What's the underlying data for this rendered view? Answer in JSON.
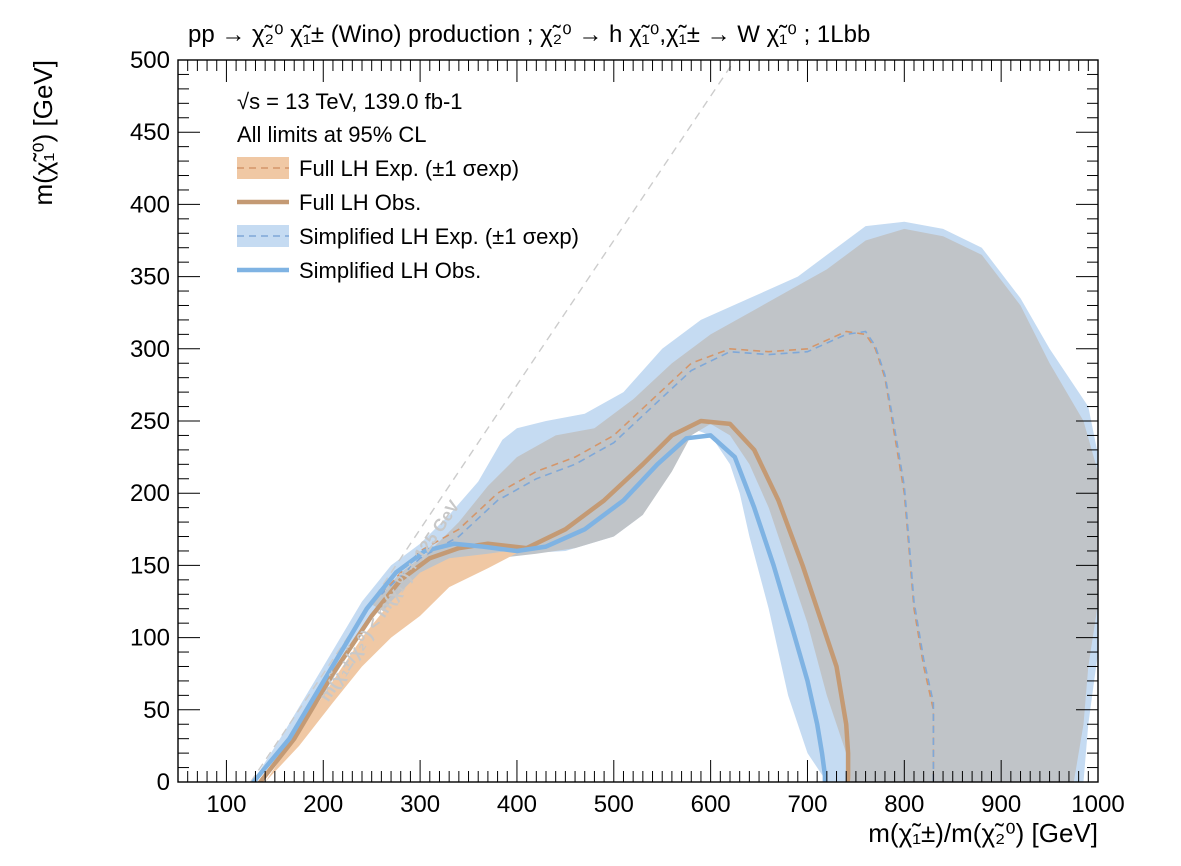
{
  "chart_data": {
    "type": "line",
    "title": "pp → χ̃₂⁰ χ̃₁± (Wino) production ; χ̃₂⁰ → h χ̃₁⁰,χ̃₁± → W χ̃₁⁰ ; 1Lbb",
    "xlabel": "m(χ̃₁±)/m(χ̃₂⁰) [GeV]",
    "ylabel": "m(χ̃₁⁰) [GeV]",
    "xlim": [
      50,
      1000
    ],
    "ylim": [
      0,
      500
    ],
    "xticks": [
      100,
      200,
      300,
      400,
      500,
      600,
      700,
      800,
      900,
      1000
    ],
    "yticks": [
      0,
      50,
      100,
      150,
      200,
      250,
      300,
      350,
      400,
      450,
      500
    ],
    "legend": {
      "position": "top-left",
      "header": [
        "√s = 13 TeV, 139.0 fb-1",
        "All limits at 95% CL"
      ],
      "entries": [
        {
          "label": "Full LH Exp. (±1 σexp)",
          "style": "dashed-band",
          "color": "#d4966a"
        },
        {
          "label": "Full LH Obs.",
          "style": "solid",
          "color": "#c49a74"
        },
        {
          "label": "Simplified LH Exp. (±1 σexp)",
          "style": "dashed-band",
          "color": "#7fa8d8"
        },
        {
          "label": "Simplified LH Obs.",
          "style": "solid",
          "color": "#7fb3e3"
        }
      ]
    },
    "annotation": "m(χ̃₁±/χ̃₂⁰) < m(χ̃₁⁰) + 125 GeV",
    "kinematic_line": {
      "x": [
        125,
        750
      ],
      "y": [
        0,
        625
      ]
    },
    "series": [
      {
        "name": "Simplified LH Exp. band",
        "kind": "band",
        "color": "#c5dbf2",
        "x": [
          127,
          160,
          200,
          240,
          270,
          300,
          330,
          360,
          385,
          400,
          430,
          470,
          510,
          550,
          590,
          640,
          690,
          730,
          760,
          800,
          840,
          880,
          920,
          950,
          990,
          1005,
          1010,
          1005,
          998,
          990,
          985,
          975,
          960,
          945,
          935,
          925,
          920,
          780,
          760,
          720,
          700,
          680,
          660,
          640,
          630,
          620,
          600,
          580,
          555,
          530,
          500,
          450,
          400,
          360,
          320,
          280,
          240,
          200,
          160,
          130
        ],
        "y": [
          0,
          35,
          80,
          125,
          150,
          165,
          185,
          208,
          237,
          245,
          250,
          255,
          270,
          300,
          320,
          335,
          350,
          370,
          385,
          388,
          383,
          370,
          335,
          300,
          260,
          210,
          150,
          110,
          80,
          40,
          0,
          0,
          0,
          0,
          0,
          0,
          0,
          0,
          0,
          0,
          20,
          60,
          120,
          170,
          200,
          220,
          240,
          245,
          215,
          185,
          170,
          160,
          158,
          160,
          155,
          140,
          105,
          60,
          25,
          0
        ]
      },
      {
        "name": "Full LH Exp. band",
        "kind": "band",
        "color": "#c0c4c8",
        "x": [
          250,
          280,
          310,
          340,
          370,
          400,
          440,
          480,
          520,
          560,
          600,
          640,
          680,
          720,
          760,
          800,
          840,
          880,
          920,
          950,
          985,
          1002,
          1005,
          998,
          990,
          985,
          975,
          960,
          945,
          935,
          925,
          905,
          880,
          860,
          850,
          840,
          820,
          800,
          780,
          760,
          745,
          745,
          745,
          740,
          720,
          700,
          680,
          660,
          640,
          620,
          600,
          580,
          560,
          530,
          500,
          460,
          420,
          380,
          340,
          300,
          270
        ],
        "y": [
          123,
          145,
          160,
          180,
          205,
          225,
          240,
          245,
          265,
          290,
          310,
          325,
          340,
          355,
          375,
          383,
          378,
          365,
          330,
          290,
          250,
          210,
          150,
          115,
          80,
          40,
          0,
          0,
          0,
          0,
          0,
          0,
          0,
          0,
          0,
          0,
          0,
          0,
          0,
          0,
          0,
          0,
          0,
          20,
          60,
          110,
          150,
          190,
          220,
          240,
          248,
          240,
          215,
          185,
          170,
          162,
          158,
          155,
          145,
          130,
          115
        ]
      },
      {
        "name": "Full LH Exp. (±1 σexp) orange band",
        "kind": "band",
        "color": "#f0c8a4",
        "x": [
          140,
          170,
          210,
          240,
          270,
          300,
          330,
          370,
          410,
          410,
          370,
          330,
          300,
          270,
          240,
          210,
          175,
          140
        ],
        "y": [
          0,
          30,
          70,
          100,
          125,
          145,
          155,
          158,
          162,
          162,
          148,
          135,
          115,
          100,
          80,
          55,
          25,
          0
        ]
      },
      {
        "name": "Full LH Exp.",
        "kind": "dashed",
        "color": "#d4966a",
        "x": [
          260,
          300,
          340,
          380,
          420,
          460,
          500,
          540,
          580,
          620,
          660,
          700,
          740,
          760,
          770,
          780,
          790,
          800,
          805,
          810,
          820,
          830,
          830,
          830,
          830
        ],
        "y": [
          130,
          160,
          175,
          200,
          215,
          225,
          240,
          265,
          290,
          300,
          298,
          300,
          312,
          310,
          300,
          280,
          240,
          200,
          160,
          120,
          80,
          50,
          30,
          10,
          0
        ]
      },
      {
        "name": "Simplified LH Exp.",
        "kind": "dashed",
        "color": "#7fa8d8",
        "x": [
          260,
          300,
          340,
          380,
          420,
          460,
          500,
          540,
          580,
          620,
          660,
          700,
          740,
          760,
          770,
          780,
          790,
          800,
          805,
          810,
          820,
          830,
          830,
          830,
          830
        ],
        "y": [
          130,
          155,
          170,
          195,
          210,
          220,
          235,
          260,
          285,
          298,
          296,
          298,
          310,
          312,
          302,
          282,
          245,
          205,
          165,
          125,
          85,
          55,
          35,
          15,
          0
        ]
      },
      {
        "name": "Full LH Obs.",
        "kind": "solid",
        "color": "#c49a74",
        "x": [
          135,
          170,
          210,
          250,
          280,
          310,
          340,
          370,
          410,
          450,
          490,
          530,
          560,
          590,
          620,
          645,
          670,
          695,
          715,
          730,
          740,
          742,
          742,
          742
        ],
        "y": [
          0,
          30,
          75,
          115,
          140,
          155,
          162,
          165,
          162,
          175,
          195,
          220,
          240,
          250,
          248,
          230,
          195,
          150,
          110,
          80,
          40,
          20,
          5,
          0
        ]
      },
      {
        "name": "Simplified LH Obs.",
        "kind": "solid",
        "color": "#7fb3e3",
        "x": [
          128,
          165,
          205,
          245,
          275,
          305,
          335,
          365,
          400,
          430,
          470,
          510,
          545,
          575,
          600,
          625,
          645,
          665,
          685,
          700,
          710,
          715,
          718,
          718
        ],
        "y": [
          0,
          30,
          75,
          120,
          145,
          160,
          165,
          163,
          160,
          163,
          175,
          195,
          220,
          238,
          240,
          225,
          190,
          150,
          105,
          70,
          40,
          20,
          5,
          0
        ]
      }
    ]
  }
}
